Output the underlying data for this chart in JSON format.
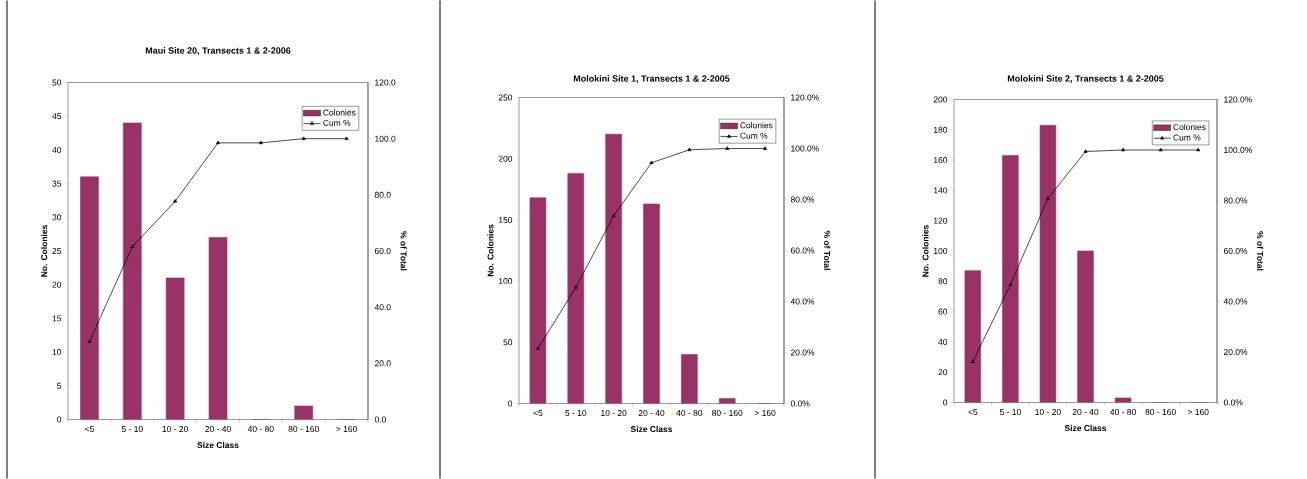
{
  "chart_data": [
    {
      "type": "bar",
      "title": "Maui Site 20, Transects 1 & 2-2006",
      "xlabel": "Size Class",
      "ylabel": "No. Colonies",
      "y2label": "% of Total",
      "categories": [
        "<5",
        "5 - 10",
        "10 - 20",
        "20 - 40",
        "40 - 80",
        "80 - 160",
        "> 160"
      ],
      "series": [
        {
          "name": "Colonies",
          "color": "#993366",
          "values": [
            36,
            44,
            21,
            27,
            0,
            2,
            0
          ]
        },
        {
          "name": "Cum %",
          "type": "line",
          "axis": "y2",
          "color": "#000000",
          "marker": "triangle",
          "values": [
            27.7,
            61.5,
            77.7,
            98.5,
            98.5,
            100,
            100
          ]
        }
      ],
      "ylim": [
        0,
        50
      ],
      "yticks": [
        0,
        5,
        10,
        15,
        20,
        25,
        30,
        35,
        40,
        45,
        50
      ],
      "y2lim": [
        0,
        120
      ],
      "y2ticks": [
        {
          "value": 0,
          "label": "0.0"
        },
        {
          "value": 20,
          "label": "20.0"
        },
        {
          "value": 40,
          "label": "40.0"
        },
        {
          "value": 60,
          "label": "60.0"
        },
        {
          "value": 80,
          "label": "80.0"
        },
        {
          "value": 100,
          "label": "100.0"
        },
        {
          "value": 120,
          "label": "120.0"
        }
      ],
      "legend": "top right",
      "grid": false
    },
    {
      "type": "bar",
      "title": "Molokini Site 1, Transects 1 & 2-2005",
      "xlabel": "Size Class",
      "ylabel": "No. Colonies",
      "y2label": "% of Total",
      "categories": [
        "<5",
        "5 - 10",
        "10 - 20",
        "20 - 40",
        "40 - 80",
        "80 - 160",
        "> 160"
      ],
      "series": [
        {
          "name": "Colonies",
          "color": "#993366",
          "values": [
            168,
            188,
            220,
            163,
            40,
            4,
            0
          ]
        },
        {
          "name": "Cum %",
          "type": "line",
          "axis": "y2",
          "color": "#000000",
          "marker": "triangle",
          "values": [
            21.5,
            45.5,
            73.6,
            94.4,
            99.5,
            100,
            100
          ]
        }
      ],
      "ylim": [
        0,
        250
      ],
      "yticks": [
        0,
        50,
        100,
        150,
        200,
        250
      ],
      "y2lim": [
        0,
        120
      ],
      "y2ticks": [
        {
          "value": 0,
          "label": "0.0%"
        },
        {
          "value": 20,
          "label": "20.0%"
        },
        {
          "value": 40,
          "label": "40.0%"
        },
        {
          "value": 60,
          "label": "60.0%"
        },
        {
          "value": 80,
          "label": "80.0%"
        },
        {
          "value": 100,
          "label": "100.0%"
        },
        {
          "value": 120,
          "label": "120.0%"
        }
      ],
      "legend": "top right",
      "grid": false
    },
    {
      "type": "bar",
      "title": "Molokini Site 2, Transects 1 & 2-2005",
      "xlabel": "Size Class",
      "ylabel": "No. Colonies",
      "y2label": "% of Total",
      "categories": [
        "<5",
        "5 - 10",
        "10 - 20",
        "20 - 40",
        "40 - 80",
        "80 - 160",
        "> 160"
      ],
      "series": [
        {
          "name": "Colonies",
          "color": "#993366",
          "values": [
            87,
            163,
            183,
            100,
            3,
            0,
            0
          ]
        },
        {
          "name": "Cum %",
          "type": "line",
          "axis": "y2",
          "color": "#000000",
          "marker": "triangle",
          "values": [
            16.2,
            46.6,
            80.8,
            99.4,
            100,
            100,
            100
          ]
        }
      ],
      "ylim": [
        0,
        200
      ],
      "yticks": [
        0,
        20,
        40,
        60,
        80,
        100,
        120,
        140,
        160,
        180,
        200
      ],
      "y2lim": [
        0,
        120
      ],
      "y2ticks": [
        {
          "value": 0,
          "label": "0.0%"
        },
        {
          "value": 20,
          "label": "20.0%"
        },
        {
          "value": 40,
          "label": "40.0%"
        },
        {
          "value": 60,
          "label": "60.0%"
        },
        {
          "value": 80,
          "label": "80.0%"
        },
        {
          "value": 100,
          "label": "100.0%"
        },
        {
          "value": 120,
          "label": "120.0%"
        }
      ],
      "legend": "top right",
      "grid": false
    }
  ]
}
